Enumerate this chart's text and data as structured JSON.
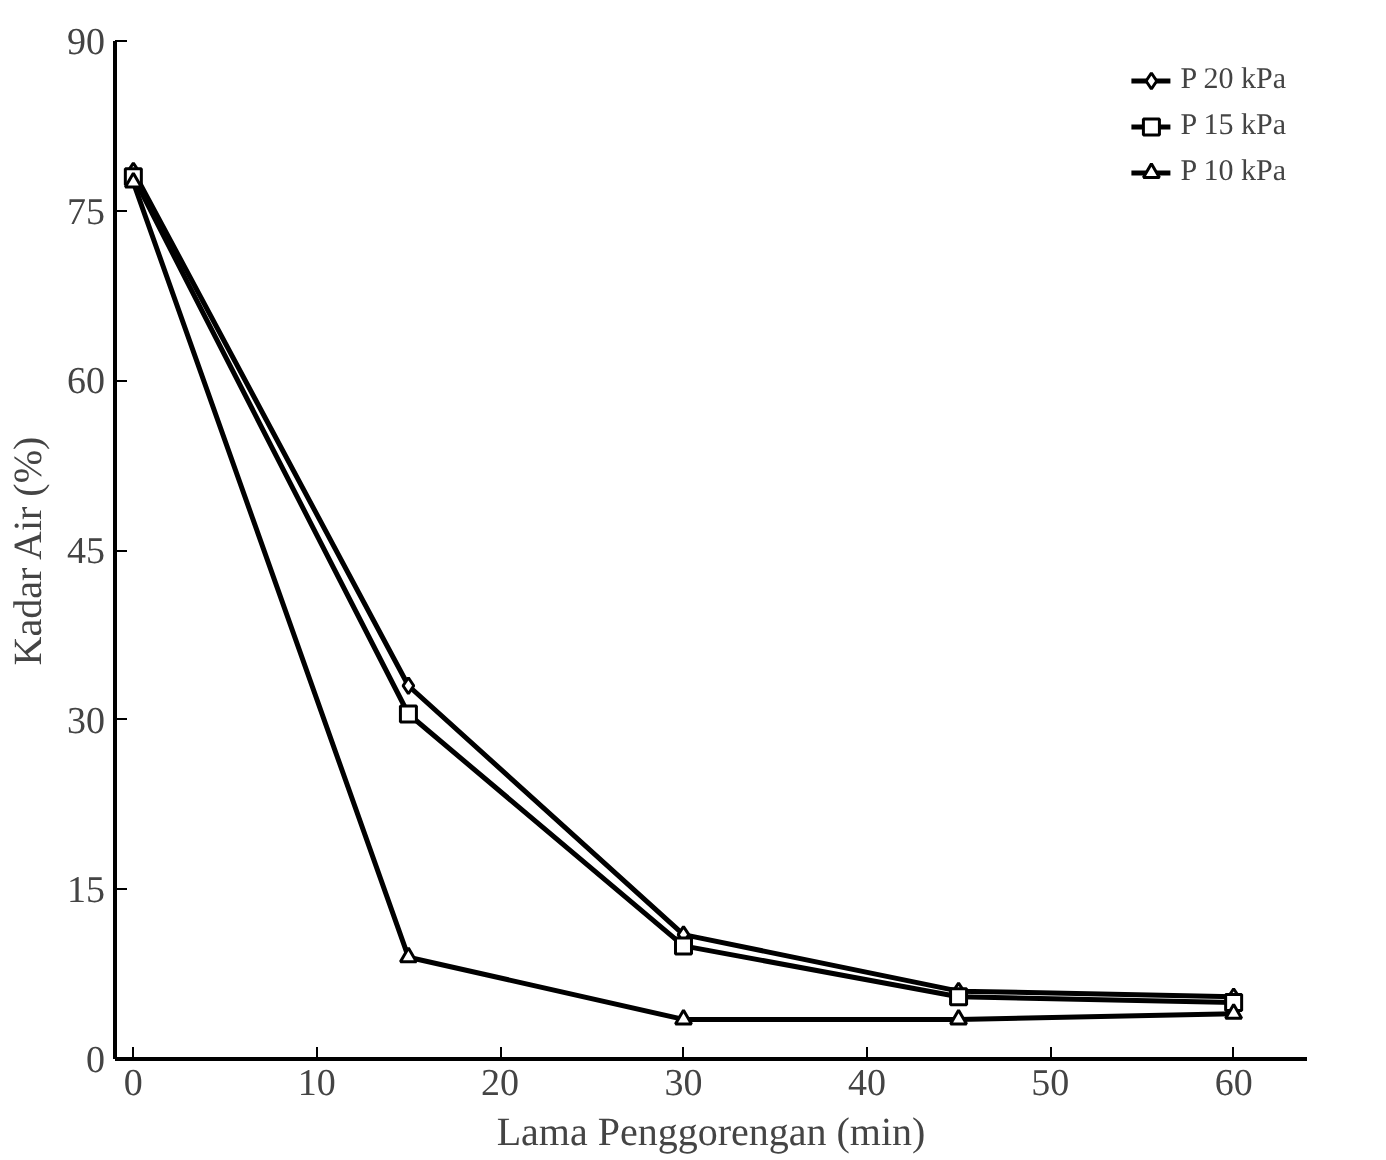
{
  "chart_data": {
    "type": "line",
    "xlabel": "Lama Penggorengan (min)",
    "ylabel": "Kadar Air (%)",
    "x": [
      0,
      15,
      30,
      45,
      60
    ],
    "series": [
      {
        "name": "P 20 kPa",
        "color": "#000000",
        "marker": "diamond",
        "values": [
          78.5,
          33,
          11,
          6,
          5.5
        ]
      },
      {
        "name": "P 15 kPa",
        "color": "#000000",
        "marker": "square",
        "values": [
          78,
          30.5,
          10,
          5.5,
          5
        ]
      },
      {
        "name": "P 10 kPa",
        "color": "#000000",
        "marker": "triangle",
        "values": [
          77.5,
          9,
          3.5,
          3.5,
          4
        ]
      }
    ],
    "xlim": [
      -1,
      64
    ],
    "ylim": [
      0,
      90
    ],
    "xticks": [
      0,
      10,
      20,
      30,
      40,
      50,
      60
    ],
    "yticks": [
      0,
      15,
      30,
      45,
      60,
      75,
      90
    ],
    "grid": false,
    "legend": "top right",
    "line_style": "solid"
  }
}
